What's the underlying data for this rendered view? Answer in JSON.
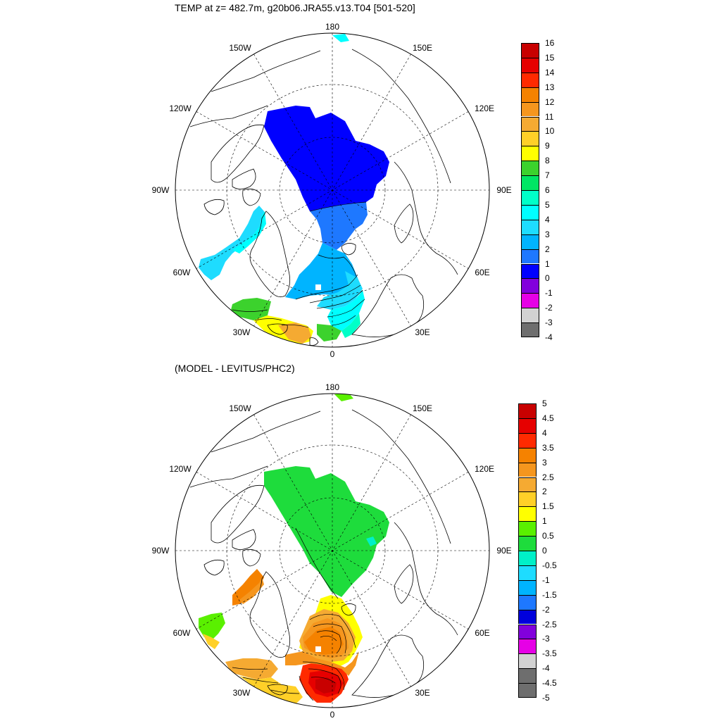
{
  "panels": [
    {
      "title": "TEMP at z= 482.7m, g20b06.JRA55.v13.T04 [501-520]",
      "lon_labels": [
        "180",
        "150E",
        "120E",
        "90E",
        "60E",
        "30E",
        "0",
        "30W",
        "60W",
        "90W",
        "120W",
        "150W"
      ],
      "colorbar": {
        "ticks": [
          "16",
          "15",
          "14",
          "13",
          "12",
          "11",
          "10",
          "9",
          "8",
          "7",
          "6",
          "5",
          "4",
          "3",
          "2",
          "1",
          "0",
          "-1",
          "-2",
          "-3",
          "-4"
        ],
        "colors": [
          "#c80000",
          "#e60000",
          "#ff2a00",
          "#f58200",
          "#f5961e",
          "#f5aa32",
          "#ffd028",
          "#ffff00",
          "#3cd22d",
          "#00e664",
          "#00ffc8",
          "#00ffff",
          "#1edcff",
          "#00b4ff",
          "#1e78ff",
          "#0000ff",
          "#8200dc",
          "#e600e6",
          "#d2d2d2",
          "#6e6e6e"
        ]
      }
    },
    {
      "title": "(MODEL - LEVITUS/PHC2)",
      "lon_labels": [
        "180",
        "150E",
        "120E",
        "90E",
        "60E",
        "30E",
        "0",
        "30W",
        "60W",
        "90W",
        "120W",
        "150W"
      ],
      "colorbar": {
        "ticks": [
          "5",
          "4.5",
          "4",
          "3.5",
          "3",
          "2.5",
          "2",
          "1.5",
          "1",
          "0.5",
          "0",
          "-0.5",
          "-1",
          "-1.5",
          "-2",
          "-2.5",
          "-3",
          "-3.5",
          "-4",
          "-4.5",
          "-5"
        ],
        "colors": [
          "#c80000",
          "#e60000",
          "#ff2a00",
          "#f58200",
          "#f5961e",
          "#f5aa32",
          "#ffd028",
          "#ffff00",
          "#5af000",
          "#1edc3c",
          "#00f0c8",
          "#1edcff",
          "#00b4ff",
          "#1e78ff",
          "#0000dc",
          "#8200dc",
          "#e600e6",
          "#d2d2d2",
          "#6e6e6e",
          "#6e6e6e"
        ]
      }
    }
  ]
}
